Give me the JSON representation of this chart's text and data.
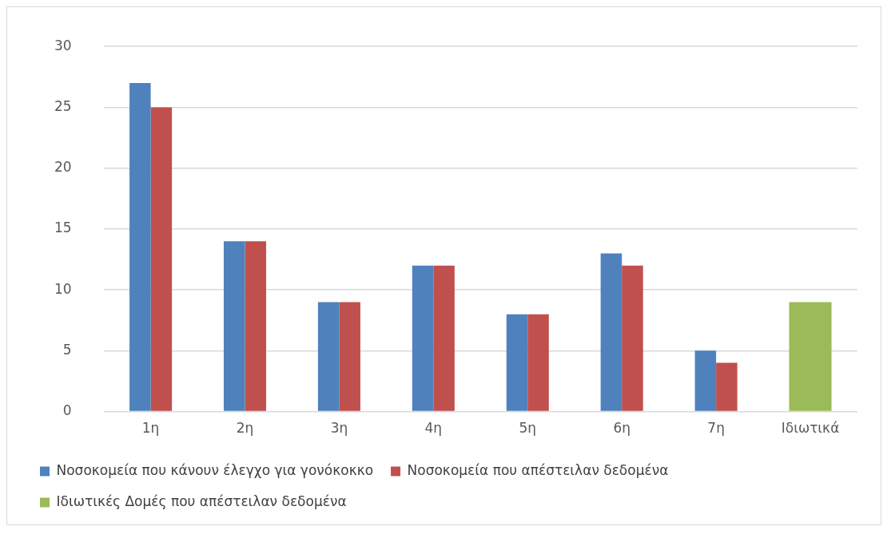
{
  "chart_data": {
    "type": "bar",
    "categories": [
      "1η",
      "2η",
      "3η",
      "4η",
      "5η",
      "6η",
      "7η",
      "Ιδιωτικά"
    ],
    "series": [
      {
        "name": "Νοσοκομεία που κάνουν έλεγχο για γονόκοκκο",
        "color": "#4f81bd",
        "values": [
          27,
          14,
          9,
          12,
          8,
          13,
          5,
          null
        ]
      },
      {
        "name": "Νοσοκομεία που απέστειλαν δεδομένα",
        "color": "#c0504d",
        "values": [
          25,
          14,
          9,
          12,
          8,
          12,
          4,
          null
        ]
      },
      {
        "name": "Ιδιωτικές Δομές που απέστειλαν δεδομένα",
        "color": "#9bbb59",
        "values": [
          null,
          null,
          null,
          null,
          null,
          null,
          null,
          9
        ]
      }
    ],
    "ylim": [
      0,
      30
    ],
    "yticks": [
      0,
      5,
      10,
      15,
      20,
      25,
      30
    ],
    "grid": "y",
    "legend": "bottom"
  }
}
